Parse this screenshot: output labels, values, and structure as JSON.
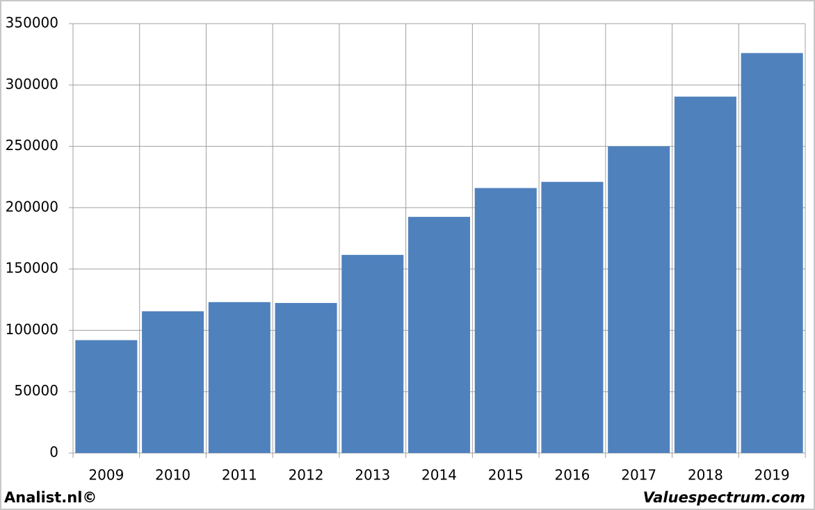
{
  "chart_data": {
    "type": "bar",
    "categories": [
      "2009",
      "2010",
      "2011",
      "2012",
      "2013",
      "2014",
      "2015",
      "2016",
      "2017",
      "2018",
      "2019"
    ],
    "values": [
      92000,
      115500,
      123000,
      122300,
      161500,
      192500,
      216000,
      221000,
      250000,
      290500,
      326000
    ],
    "color": "#4f81bd",
    "ylim": [
      0,
      350000
    ],
    "yticks": [
      0,
      50000,
      100000,
      150000,
      200000,
      250000,
      300000,
      350000
    ],
    "grid": true,
    "annotations": [
      "Analist.nl©",
      "Valuespectrum.com"
    ]
  }
}
